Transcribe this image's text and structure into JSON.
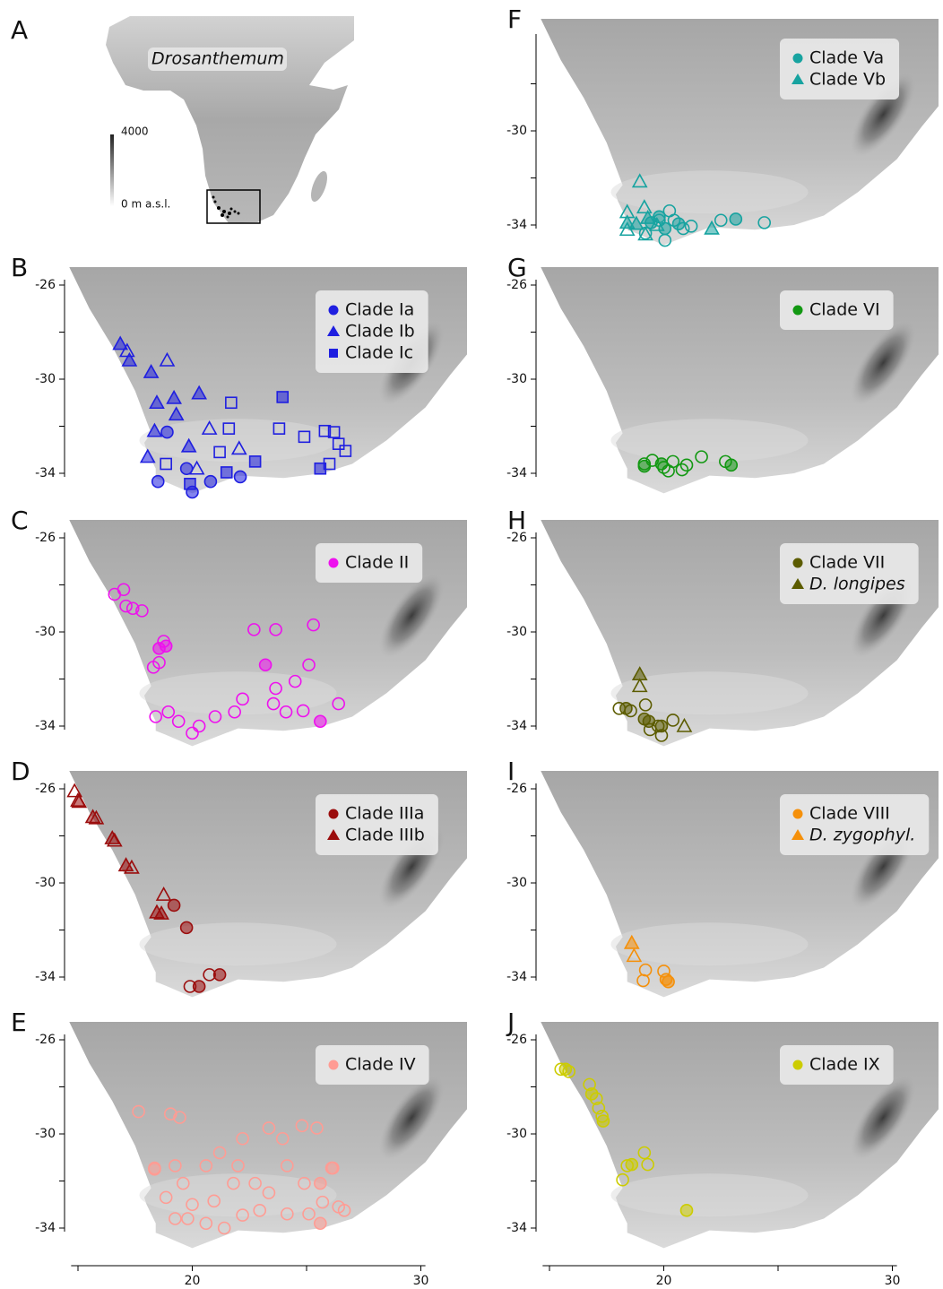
{
  "panels": [
    {
      "letter": "A",
      "label": "Drosanthemum",
      "scale_labels": [
        "4000",
        "0 m a.s.l."
      ]
    },
    {
      "letter": "B",
      "color": "#1f1fe0",
      "yticks": [
        -26,
        -30,
        -34
      ],
      "minor_yticks": [
        -28,
        -32
      ],
      "groups": [
        {
          "label": "Clade Ia",
          "shape": "circle",
          "filled": [
            [
              18.5,
              -34.35
            ],
            [
              20.0,
              -34.8
            ],
            [
              20.8,
              -34.35
            ],
            [
              22.1,
              -34.15
            ],
            [
              18.9,
              -32.25
            ],
            [
              19.75,
              -33.8
            ]
          ],
          "open": []
        },
        {
          "label": "Clade Ib",
          "shape": "triangle",
          "filled": [
            [
              16.85,
              -28.5
            ],
            [
              17.25,
              -29.2
            ],
            [
              18.2,
              -29.7
            ],
            [
              18.45,
              -31.0
            ],
            [
              19.2,
              -30.8
            ],
            [
              18.35,
              -32.2
            ],
            [
              19.3,
              -31.5
            ],
            [
              20.3,
              -30.6
            ],
            [
              19.85,
              -32.85
            ],
            [
              18.05,
              -33.3
            ]
          ],
          "open": [
            [
              17.15,
              -28.8
            ],
            [
              18.9,
              -29.2
            ],
            [
              20.75,
              -32.1
            ],
            [
              22.05,
              -32.95
            ],
            [
              20.2,
              -33.8
            ]
          ]
        },
        {
          "label": "Clade Ic",
          "shape": "square",
          "filled": [
            [
              23.95,
              -30.76
            ],
            [
              25.6,
              -33.8
            ],
            [
              21.5,
              -33.96
            ],
            [
              19.9,
              -34.45
            ],
            [
              22.75,
              -33.5
            ]
          ],
          "open": [
            [
              21.7,
              -31.0
            ],
            [
              21.6,
              -32.1
            ],
            [
              23.8,
              -32.1
            ],
            [
              24.9,
              -32.45
            ],
            [
              25.8,
              -32.2
            ],
            [
              26.2,
              -32.25
            ],
            [
              26.4,
              -32.75
            ],
            [
              26.7,
              -33.05
            ],
            [
              26.0,
              -33.6
            ],
            [
              18.85,
              -33.6
            ],
            [
              21.2,
              -33.1
            ]
          ]
        }
      ]
    },
    {
      "letter": "C",
      "color": "#ee10ee",
      "yticks": [
        -26,
        -30,
        -34
      ],
      "minor_yticks": [
        -28,
        -32
      ],
      "groups": [
        {
          "label": "Clade II",
          "shape": "circle",
          "filled": [
            [
              18.85,
              -30.6
            ],
            [
              23.2,
              -31.4
            ],
            [
              25.6,
              -33.8
            ],
            [
              18.55,
              -30.7
            ]
          ],
          "open": [
            [
              16.6,
              -28.4
            ],
            [
              17.0,
              -28.2
            ],
            [
              17.1,
              -28.9
            ],
            [
              17.4,
              -29.0
            ],
            [
              17.8,
              -29.1
            ],
            [
              18.75,
              -30.4
            ],
            [
              18.55,
              -31.3
            ],
            [
              18.3,
              -31.5
            ],
            [
              18.4,
              -33.6
            ],
            [
              19.4,
              -33.8
            ],
            [
              20.3,
              -34.0
            ],
            [
              21.0,
              -33.6
            ],
            [
              21.85,
              -33.4
            ],
            [
              22.2,
              -32.85
            ],
            [
              22.7,
              -29.9
            ],
            [
              23.65,
              -29.9
            ],
            [
              25.3,
              -29.7
            ],
            [
              25.1,
              -31.4
            ],
            [
              24.5,
              -32.1
            ],
            [
              23.65,
              -32.4
            ],
            [
              23.55,
              -33.05
            ],
            [
              24.1,
              -33.4
            ],
            [
              24.85,
              -33.35
            ],
            [
              26.4,
              -33.05
            ],
            [
              18.95,
              -33.4
            ],
            [
              20.0,
              -34.3
            ]
          ]
        }
      ]
    },
    {
      "letter": "D",
      "color": "#9b0d0d",
      "yticks": [
        -26,
        -30,
        -34
      ],
      "minor_yticks": [
        -28,
        -32
      ],
      "groups": [
        {
          "label": "Clade IIIa",
          "shape": "circle",
          "filled": [
            [
              19.2,
              -30.95
            ],
            [
              19.75,
              -31.9
            ],
            [
              20.3,
              -34.4
            ],
            [
              21.2,
              -33.9
            ]
          ],
          "open": [
            [
              19.9,
              -34.4
            ],
            [
              20.75,
              -33.9
            ]
          ]
        },
        {
          "label": "Clade IIIb",
          "shape": "triangle",
          "filled": [
            [
              15.05,
              -26.55
            ],
            [
              15.65,
              -27.2
            ],
            [
              16.5,
              -28.1
            ],
            [
              17.1,
              -29.25
            ],
            [
              18.45,
              -31.25
            ],
            [
              18.65,
              -31.3
            ]
          ],
          "open": [
            [
              14.85,
              -26.1
            ],
            [
              15.0,
              -26.5
            ],
            [
              15.8,
              -27.25
            ],
            [
              16.6,
              -28.2
            ],
            [
              17.35,
              -29.35
            ],
            [
              18.75,
              -30.5
            ]
          ]
        }
      ]
    },
    {
      "letter": "E",
      "color": "#ff9c94",
      "yticks": [
        -26,
        -30,
        -34
      ],
      "minor_yticks": [
        -28,
        -32
      ],
      "groups": [
        {
          "label": "Clade IV",
          "shape": "circle",
          "filled": [
            [
              26.15,
              -31.45
            ],
            [
              25.6,
              -32.1
            ],
            [
              25.6,
              -33.8
            ],
            [
              18.35,
              -31.5
            ]
          ],
          "open": [
            [
              17.65,
              -29.05
            ],
            [
              19.05,
              -29.15
            ],
            [
              19.45,
              -29.3
            ],
            [
              18.35,
              -31.45
            ],
            [
              19.25,
              -31.35
            ],
            [
              19.6,
              -32.1
            ],
            [
              18.85,
              -32.7
            ],
            [
              19.8,
              -33.6
            ],
            [
              20.6,
              -33.8
            ],
            [
              21.4,
              -34.0
            ],
            [
              22.2,
              -33.45
            ],
            [
              22.95,
              -33.25
            ],
            [
              23.35,
              -32.5
            ],
            [
              24.15,
              -31.35
            ],
            [
              24.8,
              -29.65
            ],
            [
              25.45,
              -29.75
            ],
            [
              23.35,
              -29.75
            ],
            [
              22.2,
              -30.2
            ],
            [
              21.2,
              -30.8
            ],
            [
              20.6,
              -31.35
            ],
            [
              21.8,
              -32.1
            ],
            [
              22.75,
              -32.1
            ],
            [
              24.9,
              -32.1
            ],
            [
              26.1,
              -31.45
            ],
            [
              25.7,
              -32.9
            ],
            [
              26.4,
              -33.1
            ],
            [
              26.65,
              -33.25
            ],
            [
              25.1,
              -33.4
            ],
            [
              24.15,
              -33.4
            ],
            [
              20.0,
              -33.0
            ],
            [
              19.25,
              -33.6
            ],
            [
              20.95,
              -32.85
            ],
            [
              22.0,
              -31.35
            ],
            [
              23.95,
              -30.2
            ]
          ]
        }
      ]
    },
    {
      "letter": "F",
      "color": "#17a3a0",
      "yticks": [
        -30,
        -34
      ],
      "minor_yticks": [
        -28,
        -32
      ],
      "groups": [
        {
          "label": "Clade Va",
          "shape": "circle",
          "filled": [
            [
              23.15,
              -33.75
            ],
            [
              20.05,
              -34.15
            ],
            [
              19.8,
              -33.65
            ],
            [
              20.65,
              -33.95
            ],
            [
              19.45,
              -33.9
            ]
          ],
          "open": [
            [
              22.5,
              -33.8
            ],
            [
              24.4,
              -33.9
            ],
            [
              21.2,
              -34.05
            ],
            [
              20.25,
              -33.4
            ],
            [
              19.8,
              -33.8
            ],
            [
              20.85,
              -34.15
            ],
            [
              20.05,
              -34.65
            ],
            [
              19.2,
              -34.35
            ],
            [
              20.45,
              -33.8
            ]
          ]
        },
        {
          "label": "Clade Vb",
          "shape": "triangle",
          "filled": [
            [
              18.4,
              -33.9
            ],
            [
              22.1,
              -34.15
            ],
            [
              18.8,
              -33.95
            ],
            [
              19.3,
              -33.7
            ]
          ],
          "open": [
            [
              18.95,
              -32.15
            ],
            [
              18.4,
              -33.45
            ],
            [
              18.4,
              -34.2
            ],
            [
              19.2,
              -34.4
            ],
            [
              19.15,
              -33.25
            ],
            [
              19.7,
              -34.0
            ]
          ]
        }
      ]
    },
    {
      "letter": "G",
      "color": "#129812",
      "yticks": [
        -26,
        -30,
        -34
      ],
      "minor_yticks": [
        -28,
        -32
      ],
      "groups": [
        {
          "label": "Clade VI",
          "shape": "circle",
          "filled": [
            [
              19.15,
              -33.7
            ],
            [
              22.95,
              -33.65
            ],
            [
              19.9,
              -33.6
            ]
          ],
          "open": [
            [
              19.15,
              -33.6
            ],
            [
              19.5,
              -33.45
            ],
            [
              20.0,
              -33.75
            ],
            [
              20.4,
              -33.5
            ],
            [
              20.8,
              -33.85
            ],
            [
              21.65,
              -33.3
            ],
            [
              22.7,
              -33.5
            ],
            [
              21.0,
              -33.65
            ],
            [
              20.2,
              -33.9
            ]
          ]
        }
      ]
    },
    {
      "letter": "H",
      "color": "#5c5c00",
      "yticks": [
        -26,
        -30,
        -34
      ],
      "minor_yticks": [
        -28,
        -32
      ],
      "groups": [
        {
          "label": "Clade VII",
          "shape": "circle",
          "filled": [
            [
              18.35,
              -33.25
            ],
            [
              19.15,
              -33.7
            ],
            [
              19.35,
              -33.8
            ],
            [
              19.9,
              -34.0
            ]
          ],
          "open": [
            [
              18.05,
              -33.25
            ],
            [
              18.55,
              -33.35
            ],
            [
              19.2,
              -33.1
            ],
            [
              19.75,
              -34.0
            ],
            [
              20.4,
              -33.75
            ],
            [
              19.9,
              -34.4
            ],
            [
              19.4,
              -34.15
            ]
          ]
        },
        {
          "label": "D. longipes",
          "shape": "triangle",
          "style": "italic",
          "filled": [
            [
              18.95,
              -31.8
            ]
          ],
          "open": [
            [
              18.95,
              -32.3
            ],
            [
              20.9,
              -34.0
            ]
          ]
        }
      ]
    },
    {
      "letter": "I",
      "color": "#f5900a",
      "yticks": [
        -26,
        -30,
        -34
      ],
      "minor_yticks": [
        -28,
        -32
      ],
      "groups": [
        {
          "label": "Clade VIII",
          "shape": "circle",
          "filled": [
            [
              20.2,
              -34.2
            ],
            [
              20.1,
              -34.1
            ]
          ],
          "open": [
            [
              19.2,
              -33.7
            ],
            [
              20.0,
              -33.75
            ],
            [
              19.1,
              -34.15
            ]
          ]
        },
        {
          "label": "D. zygophyl.",
          "shape": "triangle",
          "style": "italic",
          "filled": [
            [
              18.6,
              -32.55
            ]
          ],
          "open": [
            [
              18.7,
              -33.1
            ]
          ]
        }
      ]
    },
    {
      "letter": "J",
      "color": "#cccc00",
      "yticks": [
        -26,
        -30,
        -34
      ],
      "minor_yticks": [
        -28,
        -32
      ],
      "groups": [
        {
          "label": "Clade IX",
          "shape": "circle",
          "filled": [
            [
              15.7,
              -27.25
            ],
            [
              16.85,
              -28.3
            ],
            [
              17.35,
              -29.45
            ],
            [
              18.6,
              -31.3
            ],
            [
              21.0,
              -33.25
            ]
          ],
          "open": [
            [
              15.5,
              -27.25
            ],
            [
              15.85,
              -27.35
            ],
            [
              16.75,
              -27.9
            ],
            [
              17.05,
              -28.5
            ],
            [
              17.3,
              -29.25
            ],
            [
              17.15,
              -28.9
            ],
            [
              18.4,
              -31.35
            ],
            [
              19.15,
              -30.8
            ],
            [
              19.3,
              -31.3
            ],
            [
              18.2,
              -31.95
            ]
          ]
        }
      ]
    }
  ],
  "xticks": [
    20,
    30
  ],
  "minor_xticks": [
    15,
    25
  ]
}
